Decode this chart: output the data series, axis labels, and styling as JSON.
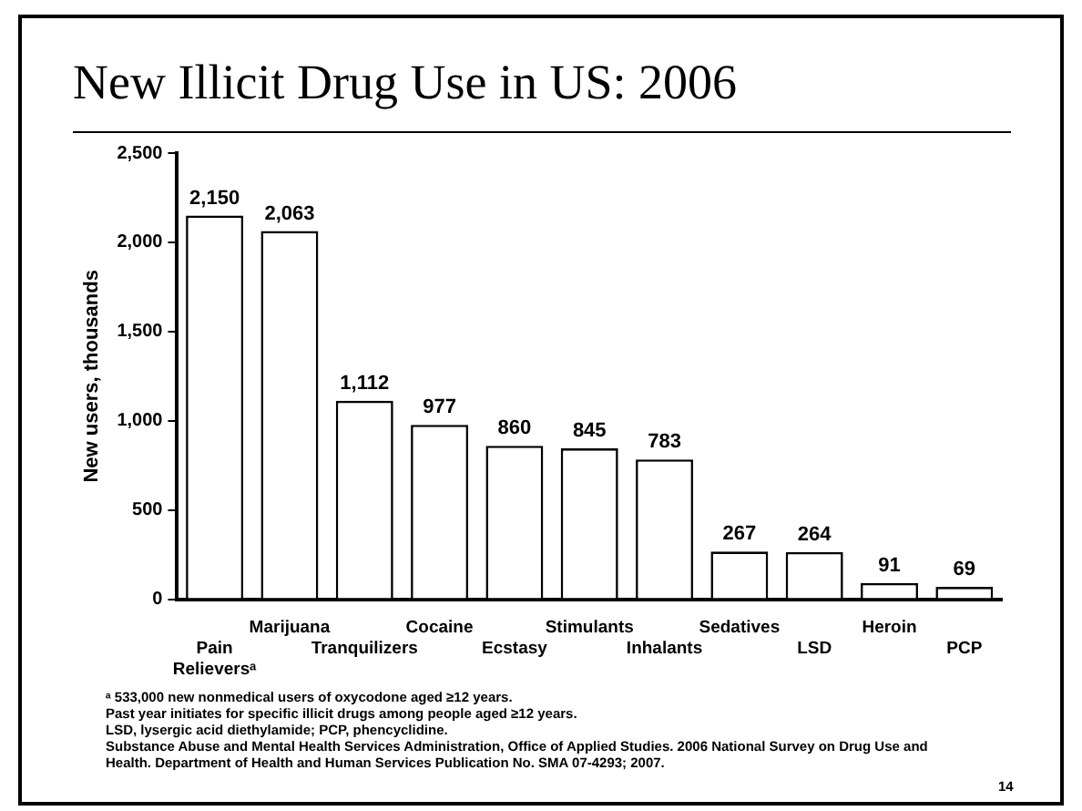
{
  "chart_data": {
    "type": "bar",
    "title": "New Illicit Drug Use in US:  2006",
    "ylabel": "New users, thousands",
    "categories": [
      "Pain Relieversᵃ",
      "Marijuana",
      "Tranquilizers",
      "Cocaine",
      "Ecstasy",
      "Stimulants",
      "Inhalants",
      "Sedatives",
      "LSD",
      "Heroin",
      "PCP"
    ],
    "values": [
      2150,
      2063,
      1112,
      977,
      860,
      845,
      783,
      267,
      264,
      91,
      69
    ],
    "value_labels": [
      "2,150",
      "2,063",
      "1,112",
      "977",
      "860",
      "845",
      "783",
      "267",
      "264",
      "91",
      "69"
    ],
    "color": "#ffffff",
    "grid": false,
    "legend": false,
    "ylim": [
      0,
      2500
    ],
    "yticks": [
      {
        "value": 0,
        "label": "0"
      },
      {
        "value": 500,
        "label": "500"
      },
      {
        "value": 1000,
        "label": "1,000"
      },
      {
        "value": 1500,
        "label": "1,500"
      },
      {
        "value": 2000,
        "label": "2,000"
      },
      {
        "value": 2500,
        "label": "2,500"
      }
    ],
    "annotations": [
      "ᵃ 533,000 new nonmedical users of oxycodone aged ≥12 years.",
      "Past year initiates for specific illicit drugs among people aged ≥12 years.",
      "LSD, lysergic acid diethylamide; PCP, phencyclidine.",
      "Substance Abuse and Mental Health Services Administration, Office of Applied Studies. 2006 National Survey on Drug Use and Health. Department of Health and Human Services Publication No. SMA 07-4293; 2007.",
      "14"
    ]
  }
}
